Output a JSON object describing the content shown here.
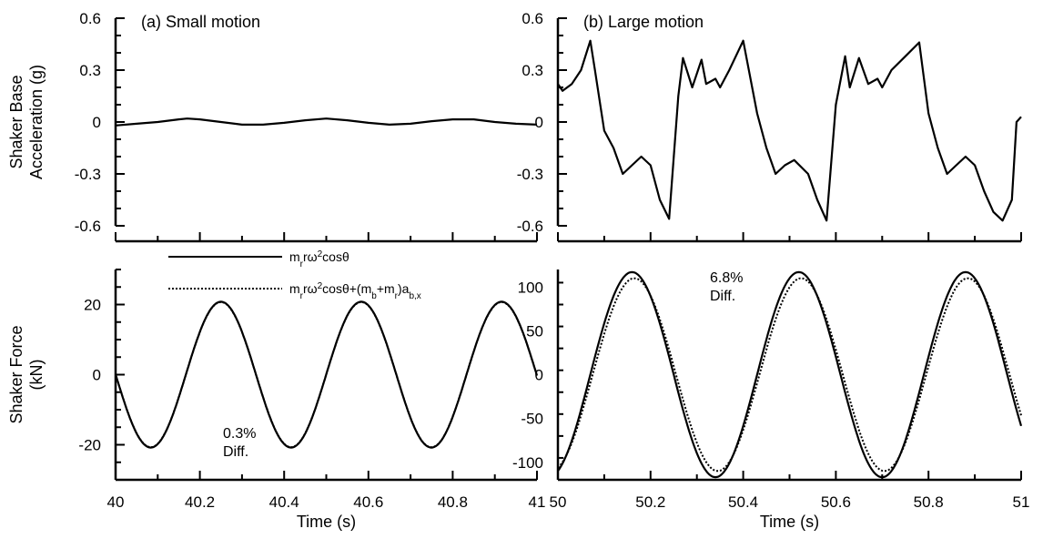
{
  "chart_data": [
    {
      "id": "a-top",
      "type": "line",
      "title": "(a) Small motion",
      "xlabel": "",
      "ylabel": [
        "Shaker Base",
        "Acceleration (g)"
      ],
      "xlim": [
        40,
        41
      ],
      "ylim": [
        -0.6,
        0.6
      ],
      "yticks": [
        "-0.6",
        "-0.3",
        "0",
        "0.3",
        "0.6"
      ],
      "xticks": [],
      "series": [
        {
          "style": "solid",
          "x": [
            40.0,
            40.05,
            40.1,
            40.15,
            40.17,
            40.2,
            40.25,
            40.3,
            40.35,
            40.4,
            40.45,
            40.5,
            40.55,
            40.6,
            40.65,
            40.7,
            40.75,
            40.8,
            40.85,
            40.9,
            40.95,
            41.0
          ],
          "y": [
            -0.02,
            -0.01,
            0.0,
            0.015,
            0.02,
            0.015,
            0.0,
            -0.015,
            -0.015,
            -0.005,
            0.01,
            0.02,
            0.01,
            -0.005,
            -0.015,
            -0.01,
            0.005,
            0.015,
            0.015,
            0.0,
            -0.01,
            -0.015
          ]
        }
      ]
    },
    {
      "id": "b-top",
      "type": "line",
      "title": "(b) Large motion",
      "xlabel": "",
      "ylabel": [],
      "xlim": [
        50,
        51
      ],
      "ylim": [
        -0.6,
        0.6
      ],
      "yticks": [
        "-0.6",
        "-0.3",
        "0",
        "0.3",
        "0.6"
      ],
      "xticks": [],
      "series": [
        {
          "style": "solid",
          "x": [
            50.0,
            50.01,
            50.03,
            50.05,
            50.07,
            50.08,
            50.1,
            50.12,
            50.14,
            50.16,
            50.18,
            50.2,
            50.22,
            50.24,
            50.26,
            50.27,
            50.29,
            50.31,
            50.32,
            50.34,
            50.35,
            50.37,
            50.4,
            50.43,
            50.45,
            50.47,
            50.49,
            50.51,
            50.54,
            50.56,
            50.58,
            50.6,
            50.62,
            50.63,
            50.65,
            50.67,
            50.69,
            50.7,
            50.72,
            50.75,
            50.78,
            50.8,
            50.82,
            50.84,
            50.86,
            50.88,
            50.9,
            50.92,
            50.94,
            50.96,
            50.98,
            50.99,
            51.0
          ],
          "y": [
            0.22,
            0.18,
            0.22,
            0.3,
            0.47,
            0.3,
            -0.05,
            -0.15,
            -0.3,
            -0.25,
            -0.2,
            -0.25,
            -0.45,
            -0.56,
            0.15,
            0.37,
            0.2,
            0.36,
            0.22,
            0.25,
            0.2,
            0.3,
            0.47,
            0.05,
            -0.15,
            -0.3,
            -0.25,
            -0.22,
            -0.3,
            -0.45,
            -0.57,
            0.1,
            0.38,
            0.2,
            0.37,
            0.22,
            0.25,
            0.2,
            0.3,
            0.38,
            0.46,
            0.05,
            -0.15,
            -0.3,
            -0.25,
            -0.2,
            -0.25,
            -0.4,
            -0.52,
            -0.57,
            -0.45,
            0.0,
            0.03
          ]
        }
      ]
    },
    {
      "id": "a-bottom",
      "type": "line",
      "title": "",
      "xlabel": "Time (s)",
      "ylabel": [
        "Shaker Force",
        "(kN)"
      ],
      "xlim": [
        40,
        41
      ],
      "ylim": [
        -30,
        30
      ],
      "yticks": [
        "-20",
        "0",
        "20"
      ],
      "ytick_values": [
        -20,
        0,
        20
      ],
      "xticks": [
        "40",
        "40.2",
        "40.4",
        "40.6",
        "40.8",
        "41"
      ],
      "xtick_values": [
        40,
        40.2,
        40.4,
        40.6,
        40.8,
        41
      ],
      "annotation": [
        "0.3%",
        "Diff."
      ],
      "series": [
        {
          "style": "solid",
          "function": "sine",
          "amplitude": 20.8,
          "period": 0.333,
          "peak_at": 40.25
        },
        {
          "style": "dotted",
          "function": "sine",
          "amplitude": 20.7,
          "period": 0.333,
          "peak_at": 40.25
        }
      ]
    },
    {
      "id": "b-bottom",
      "type": "line",
      "title": "",
      "xlabel": "Time (s)",
      "ylabel": [],
      "xlim": [
        50,
        51
      ],
      "ylim": [
        -120,
        120
      ],
      "yticks": [
        "-100",
        "-50",
        "0",
        "50",
        "100"
      ],
      "ytick_values": [
        -100,
        -50,
        0,
        50,
        100
      ],
      "xticks": [
        "50",
        "50.2",
        "50.4",
        "50.6",
        "50.8",
        "51"
      ],
      "xtick_values": [
        50,
        50.2,
        50.4,
        50.6,
        50.8,
        51
      ],
      "annotation": [
        "6.8%",
        "Diff."
      ],
      "series": [
        {
          "style": "solid",
          "function": "sine",
          "amplitude": 117,
          "period": 0.36,
          "peak_at": 50.16
        },
        {
          "style": "dotted",
          "function": "sine",
          "amplitude": 110,
          "period": 0.36,
          "peak_at": 50.165
        }
      ]
    }
  ],
  "legend": {
    "placement": "between-panels",
    "entries": [
      {
        "style": "solid",
        "label": "m_r r ω² cosθ"
      },
      {
        "style": "dotted",
        "label": "m_r r ω² cosθ + (m_b + m_r) a_b,x"
      }
    ]
  }
}
